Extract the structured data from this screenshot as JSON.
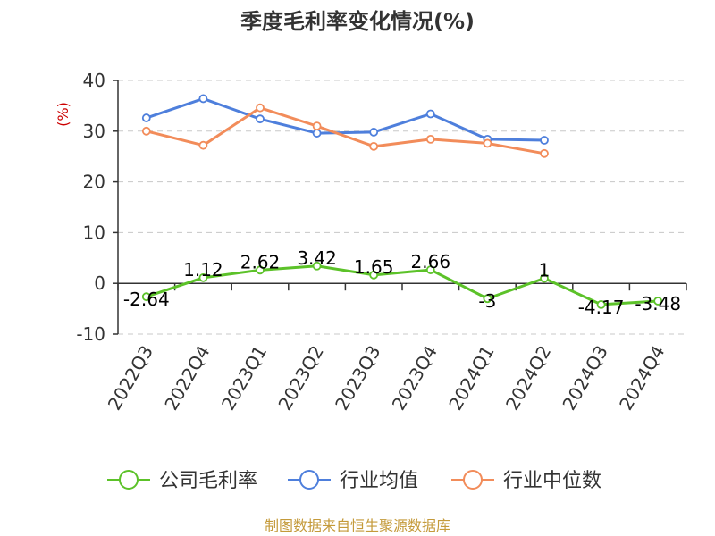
{
  "chart_data": {
    "type": "line",
    "title": "季度毛利率变化情况(%)",
    "ylabel": "(%)",
    "ylim": [
      -10,
      40
    ],
    "yticks": [
      -10,
      0,
      10,
      20,
      30,
      40
    ],
    "grid": true,
    "legend_position": "bottom",
    "categories": [
      "2022Q3",
      "2022Q4",
      "2023Q1",
      "2023Q2",
      "2023Q3",
      "2023Q4",
      "2024Q1",
      "2024Q2",
      "2024Q3",
      "2024Q4"
    ],
    "series": [
      {
        "name": "公司毛利率",
        "color": "#5cc229",
        "values": [
          -2.64,
          1.12,
          2.62,
          3.42,
          1.65,
          2.66,
          -3,
          1,
          -4.17,
          -3.48
        ],
        "labels": [
          "-2.64",
          "1.12",
          "2.62",
          "3.42",
          "1.65",
          "2.66",
          "-3",
          "1",
          "-4.17",
          "-3.48"
        ]
      },
      {
        "name": "行业均值",
        "color": "#4e7fdc",
        "values": [
          32.6,
          36.4,
          32.4,
          29.6,
          29.8,
          33.4,
          28.4,
          28.2,
          null,
          null
        ]
      },
      {
        "name": "行业中位数",
        "color": "#f28c5a",
        "values": [
          30.0,
          27.2,
          34.6,
          31.0,
          27.0,
          28.4,
          27.6,
          25.6,
          null,
          null
        ]
      }
    ],
    "source": "制图数据来自恒生聚源数据库"
  }
}
